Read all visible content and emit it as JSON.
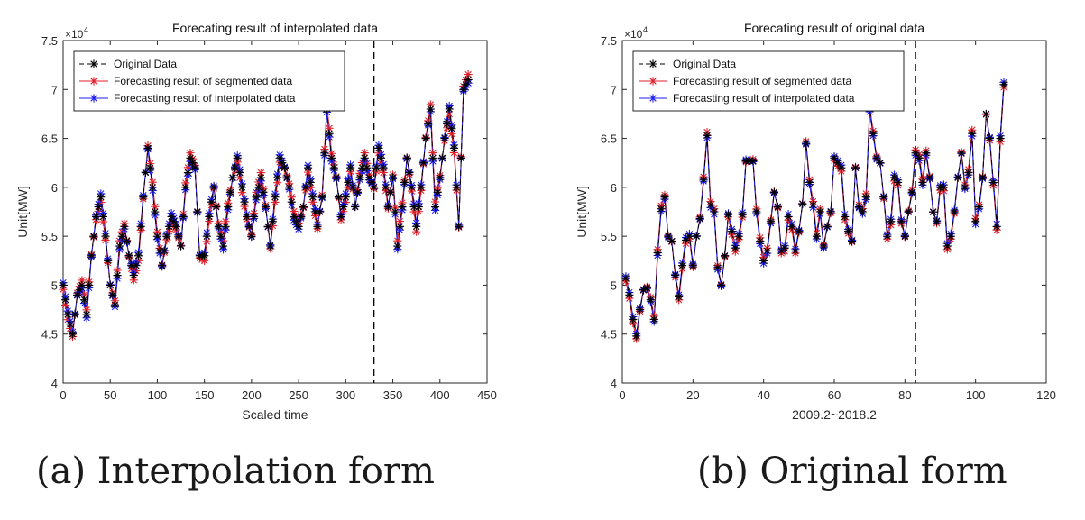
{
  "captions": [
    "(a) Interpolation form",
    "(b) Original form"
  ],
  "colors": {
    "original": "#000000",
    "segmented": "#e0202a",
    "interpolated": "#1c1cf0"
  },
  "chart_data": [
    {
      "type": "line",
      "title": "Forecating result of interpolated data",
      "xlabel": "Scaled time",
      "ylabel": "Unit[MW]",
      "y_multiplier_label": "×10",
      "y_multiplier_exp": "4",
      "xlim": [
        0,
        450
      ],
      "ylim": [
        4,
        7.5
      ],
      "x_ticks": [
        0,
        50,
        100,
        150,
        200,
        250,
        300,
        350,
        400,
        450
      ],
      "y_ticks": [
        4,
        4.5,
        5,
        5.5,
        6,
        6.5,
        7,
        7.5
      ],
      "y_tick_labels": [
        "4",
        "4.5",
        "5",
        "5.5",
        "6",
        "6.5",
        "7",
        "7.5"
      ],
      "grid": false,
      "legend_position": "top-left",
      "split_line_x": 330,
      "series": [
        {
          "name": "Original Data",
          "marker": "*",
          "line": "dashed"
        },
        {
          "name": "Forecasting result of segmented data",
          "marker": "*",
          "line": "solid"
        },
        {
          "name": "Forecasting result of interpolated data",
          "marker": "*",
          "line": "solid"
        }
      ],
      "anchor_x": [
        0,
        5,
        10,
        15,
        20,
        25,
        30,
        35,
        40,
        45,
        50,
        55,
        60,
        65,
        70,
        75,
        80,
        85,
        90,
        95,
        100,
        105,
        110,
        115,
        120,
        125,
        130,
        135,
        140,
        145,
        150,
        155,
        160,
        165,
        170,
        175,
        180,
        185,
        190,
        195,
        200,
        205,
        210,
        215,
        220,
        225,
        230,
        235,
        240,
        245,
        250,
        255,
        260,
        265,
        270,
        275,
        280,
        285,
        290,
        295,
        300,
        305,
        310,
        315,
        320,
        325,
        330,
        335,
        340,
        345,
        350,
        355,
        360,
        365,
        370,
        375,
        380,
        385,
        390,
        395,
        400,
        405,
        410,
        415,
        420,
        425,
        430
      ],
      "anchor_y": [
        5.0,
        4.7,
        4.5,
        4.9,
        5.0,
        4.7,
        5.3,
        5.7,
        5.9,
        5.5,
        5.0,
        4.8,
        5.4,
        5.6,
        5.3,
        5.1,
        5.3,
        5.9,
        6.4,
        6.0,
        5.5,
        5.2,
        5.5,
        5.7,
        5.6,
        5.4,
        6.0,
        6.3,
        6.2,
        5.3,
        5.3,
        5.7,
        6.0,
        5.6,
        5.4,
        5.8,
        6.1,
        6.3,
        6.0,
        5.7,
        5.5,
        5.9,
        6.1,
        5.8,
        5.4,
        5.9,
        6.3,
        6.2,
        6.0,
        5.7,
        5.6,
        5.8,
        6.2,
        5.9,
        5.6,
        5.9,
        6.8,
        6.3,
        6.1,
        5.7,
        5.9,
        6.2,
        5.8,
        6.1,
        6.3,
        6.1,
        6.0,
        6.4,
        6.2,
        5.8,
        6.1,
        5.4,
        5.8,
        6.3,
        6.0,
        5.6,
        6.0,
        6.5,
        6.8,
        5.8,
        6.1,
        6.5,
        6.8,
        6.4,
        5.6,
        7.0,
        7.1
      ],
      "segmented_noise": 0.06,
      "interpolated_noise": 0.04
    },
    {
      "type": "line",
      "title": "Forecating result of original data",
      "xlabel": "2009.2~2018.2",
      "ylabel": "Unit[MW]",
      "y_multiplier_label": "×10",
      "y_multiplier_exp": "4",
      "xlim": [
        0,
        120
      ],
      "ylim": [
        4,
        7.5
      ],
      "x_ticks": [
        0,
        20,
        40,
        60,
        80,
        100,
        120
      ],
      "y_ticks": [
        4,
        4.5,
        5,
        5.5,
        6,
        6.5,
        7,
        7.5
      ],
      "y_tick_labels": [
        "4",
        "4.5",
        "5",
        "5.5",
        "6",
        "6.5",
        "7",
        "7.5"
      ],
      "grid": false,
      "legend_position": "top-left",
      "split_line_x": 83,
      "series": [
        {
          "name": "Original Data",
          "marker": "*",
          "line": "dashed"
        },
        {
          "name": "Forecasting result of segmented data",
          "marker": "*",
          "line": "solid"
        },
        {
          "name": "Forecasting result of interpolated data",
          "marker": "*",
          "line": "solid"
        }
      ],
      "x": [
        1,
        2,
        3,
        4,
        5,
        6,
        7,
        8,
        9,
        10,
        11,
        12,
        13,
        14,
        15,
        16,
        17,
        18,
        19,
        20,
        21,
        22,
        23,
        24,
        25,
        26,
        27,
        28,
        29,
        30,
        31,
        32,
        33,
        34,
        35,
        36,
        37,
        38,
        39,
        40,
        41,
        42,
        43,
        44,
        45,
        46,
        47,
        48,
        49,
        50,
        51,
        52,
        53,
        54,
        55,
        56,
        57,
        58,
        59,
        60,
        61,
        62,
        63,
        64,
        65,
        66,
        67,
        68,
        69,
        70,
        71,
        72,
        73,
        74,
        75,
        76,
        77,
        78,
        79,
        80,
        81,
        82,
        83,
        84,
        85,
        86,
        87,
        88,
        89,
        90,
        91,
        92,
        93,
        94,
        95,
        96,
        97,
        98,
        99,
        100,
        101,
        102,
        103,
        104,
        105,
        106,
        107,
        108
      ],
      "original": [
        5.07,
        4.9,
        4.65,
        4.48,
        4.75,
        4.95,
        4.97,
        4.85,
        4.65,
        5.33,
        5.78,
        5.9,
        5.5,
        5.45,
        5.1,
        4.88,
        5.2,
        5.46,
        5.5,
        5.2,
        5.5,
        5.68,
        6.08,
        6.53,
        5.82,
        5.75,
        5.18,
        5.0,
        5.3,
        5.72,
        5.55,
        5.38,
        5.5,
        5.72,
        6.27,
        6.27,
        6.27,
        5.75,
        5.45,
        5.25,
        5.35,
        5.65,
        5.95,
        5.8,
        5.35,
        5.38,
        5.7,
        5.6,
        5.35,
        5.55,
        5.83,
        6.45,
        6.05,
        5.82,
        5.5,
        5.75,
        5.4,
        5.6,
        5.75,
        6.3,
        6.25,
        6.2,
        5.7,
        5.55,
        5.45,
        6.2,
        5.8,
        5.75,
        5.9,
        6.8,
        6.55,
        6.3,
        6.25,
        5.9,
        5.5,
        5.65,
        6.1,
        6.05,
        5.65,
        5.5,
        5.75,
        5.95,
        6.35,
        6.3,
        6.05,
        6.35,
        6.1,
        5.75,
        5.65,
        6.0,
        6.0,
        5.4,
        5.5,
        5.75,
        6.1,
        6.35,
        6.0,
        6.15,
        6.55,
        5.65,
        5.8,
        6.1,
        6.75,
        6.5,
        6.05,
        5.6,
        6.5,
        7.05
      ]
    }
  ]
}
